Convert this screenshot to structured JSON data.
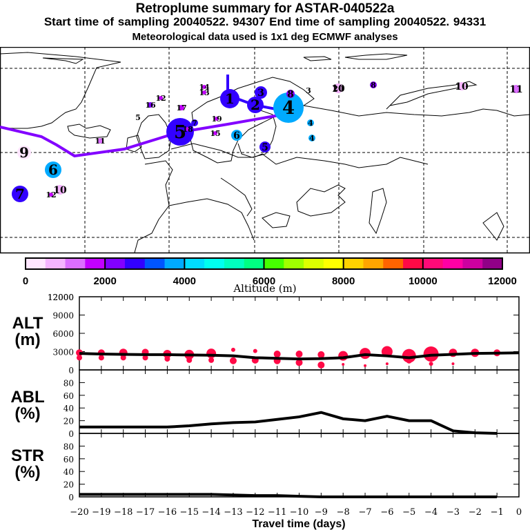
{
  "header": {
    "title": "Retroplume summary for ASTAR-040522a",
    "sampling": "Start time of sampling 20040522. 94307     End time of sampling 20040522. 94331",
    "met_data": "Meteorological data used is 1x1 deg ECMWF analyses"
  },
  "colorbar": {
    "label": "Altitude (m)",
    "ticks": [
      "0",
      "2000",
      "4000",
      "6000",
      "8000",
      "10000",
      "12000"
    ],
    "range": [
      0,
      12000
    ],
    "colors": [
      "#ffe6ff",
      "#f5b4ff",
      "#dc6eff",
      "#c300ff",
      "#8200ff",
      "#3200ff",
      "#0055ff",
      "#00aaff",
      "#00dcff",
      "#00ffef",
      "#00ffbe",
      "#00ff82",
      "#46ff00",
      "#a0ff00",
      "#dcff00",
      "#ffff00",
      "#ffd200",
      "#ffa500",
      "#ff6400",
      "#ff0a46",
      "#ff0a78",
      "#ff00a5",
      "#cd00a0",
      "#910087"
    ]
  },
  "map": {
    "trajectory_color": "#8200ff",
    "clusters": [
      {
        "label": "1",
        "alt": 2500,
        "size": 3
      },
      {
        "label": "2",
        "alt": 2600,
        "size": 3
      },
      {
        "label": "3",
        "alt": 2700,
        "size": 2
      },
      {
        "label": "4",
        "alt": 3500,
        "size": 4
      },
      {
        "label": "5",
        "alt": 2800,
        "size": 4
      },
      {
        "label": "6",
        "alt": 3600,
        "size": 2
      },
      {
        "label": "7",
        "alt": 2800,
        "size": 3
      },
      {
        "label": "8",
        "alt": 2000,
        "size": 1
      },
      {
        "label": "9",
        "alt": 300,
        "size": 2
      },
      {
        "label": "10",
        "alt": 500,
        "size": 1
      },
      {
        "label": "11",
        "alt": 1200,
        "size": 1
      },
      {
        "label": "12",
        "alt": 1800,
        "size": 1
      },
      {
        "label": "13",
        "alt": 1800,
        "size": 1
      },
      {
        "label": "14",
        "alt": 1800,
        "size": 1
      },
      {
        "label": "15",
        "alt": 1800,
        "size": 1
      },
      {
        "label": "16",
        "alt": 2000,
        "size": 1
      },
      {
        "label": "17",
        "alt": 1800,
        "size": 1
      },
      {
        "label": "18",
        "alt": 1800,
        "size": 1
      },
      {
        "label": "19",
        "alt": 1800,
        "size": 1
      },
      {
        "label": "20",
        "alt": 2500,
        "size": 1
      }
    ]
  },
  "chart_data": [
    {
      "type": "line",
      "name": "ALT",
      "ylabel": "ALT (m)",
      "ylim": [
        0,
        12000
      ],
      "yticks": [
        "0",
        "3000",
        "6000",
        "9000",
        "12000"
      ],
      "x": [
        -20,
        -19,
        -18,
        -17,
        -16,
        -15,
        -14,
        -13,
        -12,
        -11,
        -10,
        -9,
        -8,
        -7,
        -6,
        -5,
        -4,
        -3,
        -2,
        -1,
        0
      ],
      "values": [
        2700,
        2600,
        2550,
        2500,
        2500,
        2450,
        2400,
        2300,
        2000,
        1900,
        1800,
        1850,
        2000,
        2500,
        2300,
        2000,
        2400,
        2550,
        2700,
        2750,
        2800
      ],
      "scatter_color": "#ff0a46",
      "scatter_points": [
        {
          "x": -20,
          "y": 2800,
          "s": 5
        },
        {
          "x": -20,
          "y": 2000,
          "s": 4
        },
        {
          "x": -19,
          "y": 2800,
          "s": 5
        },
        {
          "x": -19,
          "y": 2000,
          "s": 4
        },
        {
          "x": -18,
          "y": 2800,
          "s": 6
        },
        {
          "x": -18,
          "y": 2000,
          "s": 4
        },
        {
          "x": -17,
          "y": 2900,
          "s": 5
        },
        {
          "x": -17,
          "y": 2000,
          "s": 4
        },
        {
          "x": -16,
          "y": 2600,
          "s": 6
        },
        {
          "x": -16,
          "y": 1800,
          "s": 4
        },
        {
          "x": -15,
          "y": 2500,
          "s": 7
        },
        {
          "x": -15,
          "y": 1600,
          "s": 4
        },
        {
          "x": -14,
          "y": 2700,
          "s": 7
        },
        {
          "x": -14,
          "y": 1600,
          "s": 4
        },
        {
          "x": -13,
          "y": 3300,
          "s": 3
        },
        {
          "x": -13,
          "y": 1500,
          "s": 5
        },
        {
          "x": -12,
          "y": 3100,
          "s": 3
        },
        {
          "x": -12,
          "y": 1600,
          "s": 5
        },
        {
          "x": -11,
          "y": 2600,
          "s": 5
        },
        {
          "x": -11,
          "y": 1500,
          "s": 5
        },
        {
          "x": -10,
          "y": 2600,
          "s": 5
        },
        {
          "x": -10,
          "y": 1200,
          "s": 5
        },
        {
          "x": -9,
          "y": 2500,
          "s": 5
        },
        {
          "x": -9,
          "y": 800,
          "s": 5
        },
        {
          "x": -8,
          "y": 2300,
          "s": 7
        },
        {
          "x": -8,
          "y": 900,
          "s": 2
        },
        {
          "x": -7,
          "y": 2700,
          "s": 8
        },
        {
          "x": -7,
          "y": 700,
          "s": 2
        },
        {
          "x": -6,
          "y": 3000,
          "s": 8
        },
        {
          "x": -6,
          "y": 1000,
          "s": 2
        },
        {
          "x": -5,
          "y": 2300,
          "s": 10
        },
        {
          "x": -5,
          "y": 1500,
          "s": 4
        },
        {
          "x": -4,
          "y": 2600,
          "s": 11
        },
        {
          "x": -4,
          "y": 1000,
          "s": 3
        },
        {
          "x": -3,
          "y": 2800,
          "s": 6
        },
        {
          "x": -3,
          "y": 1000,
          "s": 2
        },
        {
          "x": -2,
          "y": 2800,
          "s": 6
        },
        {
          "x": -1,
          "y": 2800,
          "s": 5
        }
      ]
    },
    {
      "type": "line",
      "name": "ABL",
      "ylabel": "ABL (%)",
      "ylim": [
        0,
        100
      ],
      "yticks": [
        "0",
        "20",
        "40",
        "60",
        "80"
      ],
      "x": [
        -20,
        -19,
        -18,
        -17,
        -16,
        -15,
        -14,
        -13,
        -12,
        -11,
        -10,
        -9,
        -8,
        -7,
        -6,
        -5,
        -4,
        -3,
        -2,
        -1
      ],
      "values": [
        10,
        10,
        10,
        10,
        10,
        12,
        15,
        17,
        18,
        22,
        26,
        33,
        23,
        20,
        27,
        20,
        20,
        4,
        1,
        0
      ]
    },
    {
      "type": "line",
      "name": "STR",
      "ylabel": "STR (%)",
      "ylim": [
        0,
        100
      ],
      "yticks": [
        "0",
        "20",
        "40",
        "60",
        "80"
      ],
      "x": [
        -20,
        -19,
        -18,
        -17,
        -16,
        -15,
        -14,
        -13,
        -12,
        -11,
        -10,
        -9,
        -8,
        -7,
        -6,
        -5,
        -4,
        -3,
        -2,
        -1
      ],
      "values": [
        4,
        4,
        4,
        4,
        4,
        4,
        4,
        3,
        2,
        2,
        1,
        0,
        0,
        0,
        0,
        0,
        0,
        0,
        0,
        0
      ]
    }
  ],
  "xaxis": {
    "label": "Travel time (days)",
    "ticks": [
      "−20",
      "−19",
      "−18",
      "−17",
      "−16",
      "−15",
      "−14",
      "−13",
      "−12",
      "−11",
      "−10",
      "−9",
      "−8",
      "−7",
      "−6",
      "−5",
      "−4",
      "−3",
      "−2",
      "−1",
      "0"
    ],
    "range": [
      -20,
      0
    ]
  }
}
